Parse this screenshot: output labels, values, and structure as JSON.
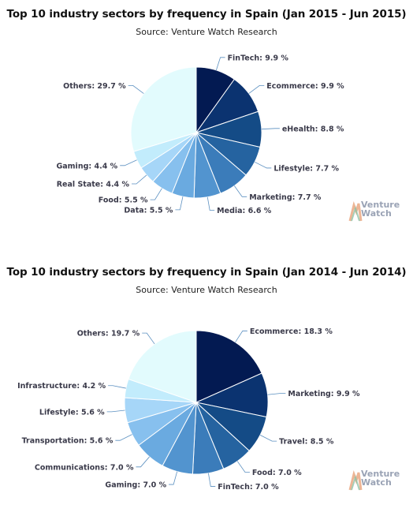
{
  "chart_data": [
    {
      "type": "pie",
      "title": "Top 10 industry sectors by frequency in Spain (Jan 2015 - Jun 2015)",
      "subtitle": "Source: Venture Watch Research",
      "logo_text": [
        "Venture",
        "Watch"
      ],
      "slices": [
        {
          "label": "FinTech: 9.9 %",
          "value": 9.9,
          "color": "#031a52"
        },
        {
          "label": "Ecommerce: 9.9 %",
          "value": 9.9,
          "color": "#0b3370"
        },
        {
          "label": "eHealth: 8.8 %",
          "value": 8.8,
          "color": "#144b86"
        },
        {
          "label": "Lifestyle: 7.7 %",
          "value": 7.7,
          "color": "#2563a0"
        },
        {
          "label": "Marketing: 7.7 %",
          "value": 7.7,
          "color": "#3b7cba"
        },
        {
          "label": "Media: 6.6 %",
          "value": 6.6,
          "color": "#5294cf"
        },
        {
          "label": "Data: 5.5 %",
          "value": 5.5,
          "color": "#6aaae0"
        },
        {
          "label": "Food: 5.5 %",
          "value": 5.5,
          "color": "#87c0ee"
        },
        {
          "label": "Real State: 4.4 %",
          "value": 4.4,
          "color": "#a6d6f8"
        },
        {
          "label": "Gaming: 4.4 %",
          "value": 4.4,
          "color": "#c2ecfc"
        },
        {
          "label": "Others: 29.7 %",
          "value": 29.7,
          "color": "#e2fbfd"
        }
      ]
    },
    {
      "type": "pie",
      "title": "Top 10 industry sectors by frequency in Spain (Jan 2014 - Jun 2014)",
      "subtitle": "Source: Venture Watch Research",
      "logo_text": [
        "Venture",
        "Watch"
      ],
      "slices": [
        {
          "label": "Ecommerce: 18.3 %",
          "value": 18.3,
          "color": "#031a52"
        },
        {
          "label": "Marketing: 9.9 %",
          "value": 9.9,
          "color": "#0b3370"
        },
        {
          "label": "Travel: 8.5 %",
          "value": 8.5,
          "color": "#144b86"
        },
        {
          "label": "Food: 7.0 %",
          "value": 7.0,
          "color": "#2563a0"
        },
        {
          "label": "FinTech: 7.0 %",
          "value": 7.0,
          "color": "#3b7cba"
        },
        {
          "label": "Gaming: 7.0 %",
          "value": 7.0,
          "color": "#5294cf"
        },
        {
          "label": "Communications: 7.0 %",
          "value": 7.0,
          "color": "#6aaae0"
        },
        {
          "label": "Transportation: 5.6 %",
          "value": 5.6,
          "color": "#87c0ee"
        },
        {
          "label": "Lifestyle: 5.6 %",
          "value": 5.6,
          "color": "#a6d6f8"
        },
        {
          "label": "Infrastructure: 4.2 %",
          "value": 4.2,
          "color": "#c2ecfc"
        },
        {
          "label": "Others: 19.7 %",
          "value": 19.7,
          "color": "#e2fbfd"
        }
      ]
    }
  ]
}
